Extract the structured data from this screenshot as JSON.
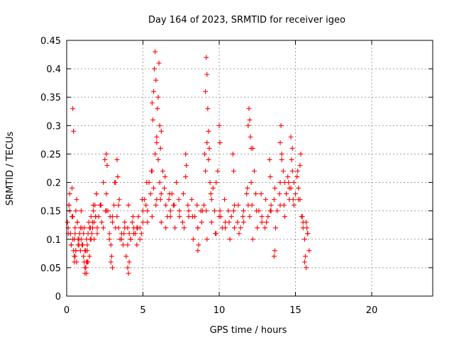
{
  "chart_data": {
    "type": "scatter",
    "title": "Day 164 of 2023, SRMTID for receiver igeo",
    "xlabel": "GPS time / hours",
    "ylabel": "SRMTID / TECUs",
    "xlim": [
      0,
      24
    ],
    "ylim": [
      0,
      0.45
    ],
    "x_ticks": [
      0,
      5,
      10,
      15,
      20
    ],
    "x_tick_labels": [
      "0",
      "5",
      "10",
      "15",
      "20"
    ],
    "y_ticks": [
      0,
      0.05,
      0.1,
      0.15,
      0.2,
      0.25,
      0.3,
      0.35,
      0.4,
      0.45
    ],
    "y_tick_labels": [
      "0",
      "0.05",
      "0.1",
      "0.15",
      "0.2",
      "0.25",
      "0.3",
      "0.35",
      "0.4",
      "0.45"
    ],
    "grid": true,
    "marker": "+",
    "color": "#ff0000",
    "series": [
      {
        "name": "SRMTID",
        "x": [
          0.05,
          0.1,
          0.15,
          0.2,
          0.25,
          0.3,
          0.35,
          0.4,
          0.45,
          0.5,
          0.55,
          0.6,
          0.65,
          0.7,
          0.75,
          0.8,
          0.85,
          0.9,
          0.95,
          1.0,
          1.05,
          1.1,
          1.15,
          1.2,
          1.25,
          1.3,
          1.35,
          1.4,
          1.45,
          1.5,
          1.55,
          1.6,
          1.65,
          1.7,
          1.75,
          1.8,
          1.85,
          1.9,
          1.95,
          2.0,
          2.1,
          2.2,
          2.3,
          2.4,
          2.5,
          2.6,
          2.7,
          2.8,
          2.9,
          3.0,
          3.1,
          3.2,
          3.3,
          3.4,
          3.5,
          3.6,
          3.7,
          3.8,
          3.9,
          4.0,
          4.1,
          4.2,
          4.3,
          4.4,
          4.5,
          4.6,
          4.7,
          4.8,
          4.9,
          5.0,
          5.1,
          5.2,
          5.3,
          5.4,
          5.5,
          5.6,
          5.7,
          5.8,
          5.9,
          6.0,
          6.1,
          6.2,
          6.3,
          6.4,
          6.5,
          6.6,
          6.7,
          6.8,
          6.9,
          7.0,
          7.2,
          7.4,
          7.6,
          7.8,
          8.0,
          8.2,
          8.4,
          8.6,
          8.8,
          9.0,
          9.1,
          9.2,
          9.3,
          9.4,
          9.5,
          9.6,
          9.7,
          9.8,
          9.9,
          10.0,
          10.2,
          10.4,
          10.6,
          10.8,
          11.0,
          11.2,
          11.4,
          11.6,
          11.8,
          12.0,
          12.1,
          12.2,
          12.3,
          12.4,
          12.6,
          12.8,
          13.0,
          13.2,
          13.4,
          13.6,
          13.8,
          14.0,
          14.1,
          14.2,
          14.3,
          14.4,
          14.5,
          14.6,
          14.7,
          14.8,
          14.9,
          15.0,
          15.1,
          15.2,
          15.3,
          15.4,
          15.5,
          15.6,
          15.7,
          15.8,
          15.9,
          0.1,
          0.2,
          0.3,
          0.4,
          0.5,
          0.6,
          0.7,
          0.8,
          0.9,
          1.0,
          1.1,
          1.2,
          1.3,
          1.4,
          1.5,
          1.6,
          1.7,
          1.8,
          1.9,
          2.0,
          2.2,
          2.4,
          2.6,
          2.8,
          3.0,
          3.2,
          3.4,
          3.6,
          3.8,
          4.0,
          4.2,
          4.4,
          4.6,
          4.8,
          5.0,
          5.3,
          5.6,
          5.9,
          6.2,
          6.5,
          6.8,
          7.1,
          7.4,
          7.7,
          8.0,
          8.3,
          8.6,
          8.9,
          9.2,
          9.5,
          9.8,
          10.1,
          10.4,
          10.7,
          11.0,
          11.3,
          11.6,
          11.9,
          12.2,
          12.5,
          12.8,
          13.1,
          13.4,
          13.7,
          14.0,
          14.3,
          14.6,
          14.9,
          15.2,
          15.5,
          15.8,
          0.15,
          0.35,
          0.55,
          0.75,
          0.95,
          1.15,
          1.35,
          1.55,
          1.75,
          1.95,
          2.25,
          2.55,
          2.85,
          3.15,
          3.45,
          3.75,
          4.05,
          4.35,
          4.65,
          4.95,
          5.25,
          5.55,
          5.85,
          6.15,
          6.45,
          6.75,
          7.05,
          7.35,
          7.65,
          7.95,
          8.25,
          8.55,
          8.85,
          9.15,
          9.45,
          9.75,
          10.05,
          10.35,
          10.65,
          10.95,
          11.25,
          11.55,
          11.85,
          12.15,
          12.45,
          12.75,
          13.05,
          13.35,
          13.65,
          13.95,
          14.25,
          14.55,
          14.85,
          15.15,
          15.45,
          15.75,
          5.6,
          5.65,
          5.7,
          5.75,
          5.8,
          5.85,
          5.9,
          5.95,
          6.0,
          6.05,
          6.1,
          6.15,
          6.2,
          9.05,
          9.1,
          9.15,
          9.2,
          9.25,
          9.3,
          9.35,
          11.9,
          11.95,
          12.0,
          12.05,
          12.1,
          14.0,
          14.05,
          14.1,
          14.7,
          14.75,
          14.8,
          0.4,
          0.45,
          2.6,
          2.65,
          3.3,
          3.35,
          7.8,
          7.85,
          10.0,
          10.05,
          10.9,
          10.95,
          13.3,
          13.35,
          15.3,
          15.35,
          1.2,
          1.25,
          1.3,
          1.35,
          4.0,
          4.05,
          4.1,
          15.6,
          15.65,
          15.7,
          0.5,
          0.55,
          0.6,
          0.65,
          2.9,
          2.95,
          3.0,
          8.6,
          8.65,
          13.6,
          13.65
        ],
        "y": [
          0.13,
          0.12,
          0.16,
          0.18,
          0.11,
          0.09,
          0.14,
          0.1,
          0.08,
          0.07,
          0.12,
          0.15,
          0.17,
          0.13,
          0.1,
          0.09,
          0.11,
          0.08,
          0.1,
          0.12,
          0.09,
          0.07,
          0.06,
          0.05,
          0.08,
          0.06,
          0.09,
          0.11,
          0.13,
          0.12,
          0.1,
          0.14,
          0.11,
          0.12,
          0.15,
          0.13,
          0.16,
          0.14,
          0.18,
          0.12,
          0.14,
          0.16,
          0.13,
          0.2,
          0.24,
          0.18,
          0.15,
          0.11,
          0.09,
          0.13,
          0.16,
          0.2,
          0.14,
          0.12,
          0.1,
          0.11,
          0.09,
          0.12,
          0.07,
          0.12,
          0.11,
          0.1,
          0.13,
          0.12,
          0.11,
          0.09,
          0.14,
          0.12,
          0.11,
          0.15,
          0.17,
          0.16,
          0.13,
          0.2,
          0.18,
          0.22,
          0.19,
          0.25,
          0.28,
          0.24,
          0.2,
          0.18,
          0.22,
          0.19,
          0.16,
          0.14,
          0.17,
          0.15,
          0.18,
          0.16,
          0.2,
          0.14,
          0.13,
          0.21,
          0.15,
          0.17,
          0.14,
          0.12,
          0.15,
          0.16,
          0.22,
          0.27,
          0.24,
          0.2,
          0.17,
          0.19,
          0.15,
          0.2,
          0.22,
          0.14,
          0.12,
          0.13,
          0.15,
          0.14,
          0.16,
          0.13,
          0.12,
          0.15,
          0.18,
          0.14,
          0.2,
          0.26,
          0.22,
          0.18,
          0.15,
          0.13,
          0.12,
          0.14,
          0.16,
          0.17,
          0.15,
          0.2,
          0.24,
          0.22,
          0.2,
          0.18,
          0.21,
          0.17,
          0.19,
          0.22,
          0.2,
          0.18,
          0.21,
          0.19,
          0.17,
          0.14,
          0.12,
          0.1,
          0.13,
          0.11,
          0.08,
          0.11,
          0.15,
          0.09,
          0.14,
          0.1,
          0.08,
          0.13,
          0.1,
          0.12,
          0.09,
          0.11,
          0.08,
          0.1,
          0.06,
          0.07,
          0.1,
          0.13,
          0.1,
          0.14,
          0.11,
          0.16,
          0.12,
          0.15,
          0.1,
          0.14,
          0.12,
          0.16,
          0.1,
          0.13,
          0.09,
          0.1,
          0.11,
          0.12,
          0.1,
          0.13,
          0.15,
          0.14,
          0.17,
          0.13,
          0.12,
          0.14,
          0.12,
          0.15,
          0.12,
          0.14,
          0.1,
          0.12,
          0.15,
          0.1,
          0.13,
          0.11,
          0.14,
          0.12,
          0.1,
          0.12,
          0.11,
          0.13,
          0.16,
          0.1,
          0.12,
          0.14,
          0.13,
          0.15,
          0.12,
          0.16,
          0.14,
          0.19,
          0.16,
          0.17,
          0.13,
          0.11,
          0.16,
          0.19,
          0.11,
          0.09,
          0.15,
          0.12,
          0.08,
          0.12,
          0.16,
          0.18,
          0.16,
          0.15,
          0.14,
          0.2,
          0.17,
          0.11,
          0.16,
          0.14,
          0.12,
          0.17,
          0.2,
          0.22,
          0.16,
          0.17,
          0.21,
          0.18,
          0.16,
          0.17,
          0.18,
          0.16,
          0.14,
          0.16,
          0.13,
          0.15,
          0.18,
          0.11,
          0.15,
          0.17,
          0.13,
          0.15,
          0.16,
          0.14,
          0.19,
          0.16,
          0.15,
          0.18,
          0.17,
          0.15,
          0.19,
          0.18,
          0.16,
          0.2,
          0.17,
          0.22,
          0.14,
          0.12,
          0.34,
          0.31,
          0.36,
          0.4,
          0.43,
          0.38,
          0.27,
          0.33,
          0.35,
          0.41,
          0.3,
          0.26,
          0.29,
          0.25,
          0.36,
          0.42,
          0.39,
          0.33,
          0.29,
          0.26,
          0.3,
          0.33,
          0.31,
          0.28,
          0.26,
          0.27,
          0.3,
          0.25,
          0.28,
          0.24,
          0.26,
          0.33,
          0.29,
          0.25,
          0.23,
          0.24,
          0.21,
          0.25,
          0.23,
          0.3,
          0.27,
          0.25,
          0.22,
          0.24,
          0.21,
          0.23,
          0.25,
          0.04,
          0.05,
          0.04,
          0.06,
          0.05,
          0.04,
          0.06,
          0.06,
          0.07,
          0.05,
          0.06,
          0.07,
          0.08,
          0.06,
          0.06,
          0.07,
          0.05,
          0.08,
          0.09,
          0.07,
          0.08
        ]
      }
    ]
  }
}
